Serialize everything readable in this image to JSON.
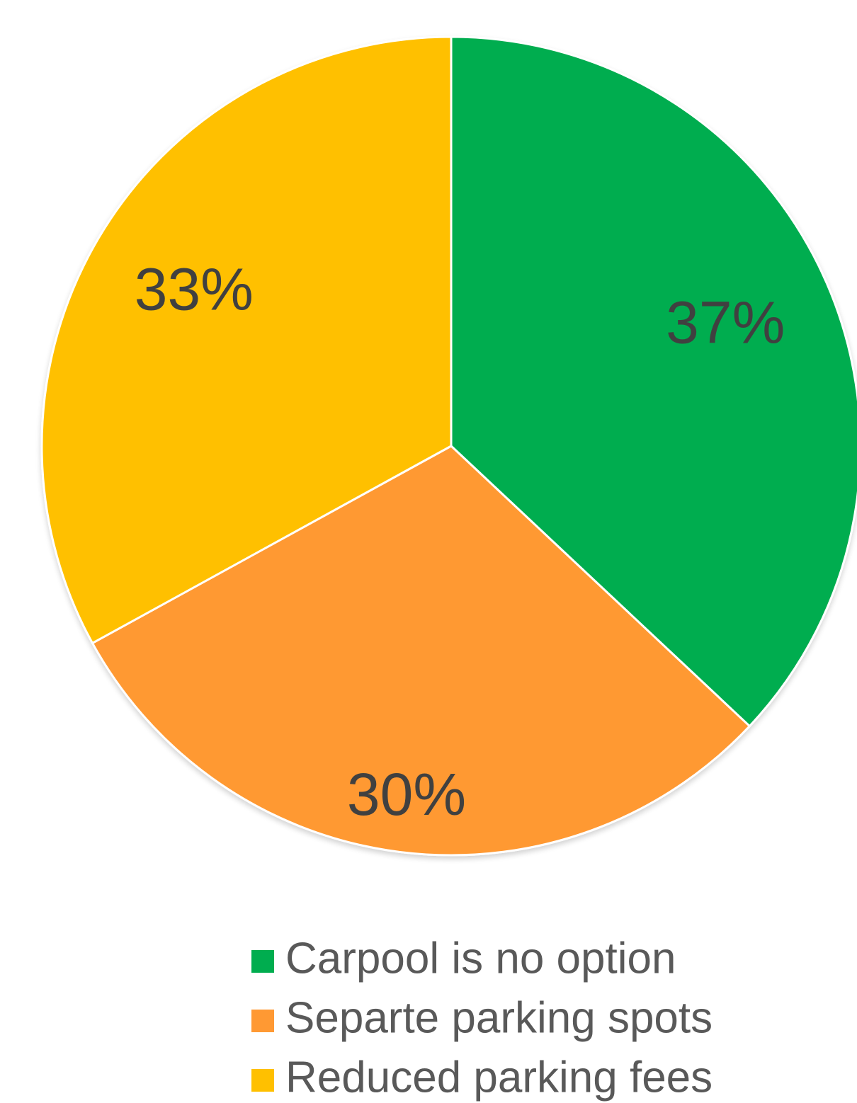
{
  "chart_data": {
    "type": "pie",
    "title": "",
    "categories": [
      "Carpool is no option",
      "Separte parking spots",
      "Reduced parking fees"
    ],
    "values": [
      37,
      30,
      33
    ],
    "data_labels": [
      "37%",
      "30%",
      "33%"
    ],
    "colors": [
      "#00AD4F",
      "#FF9933",
      "#FFC000"
    ],
    "start_angle": "12 o'clock",
    "direction": "clockwise",
    "legend_position": "bottom"
  }
}
